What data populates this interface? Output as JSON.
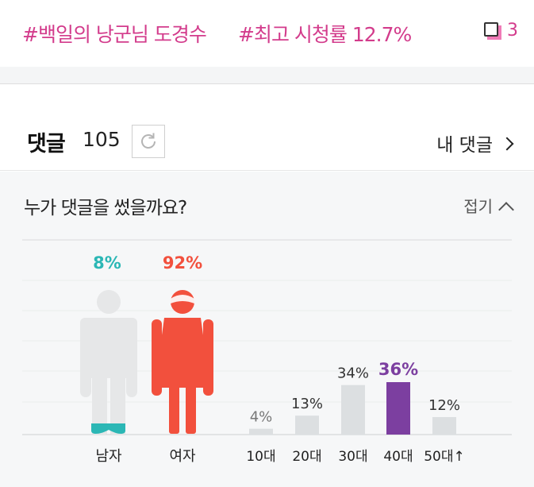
{
  "hashtags": [
    "#백일의 낭군님 도경수",
    "#최고 시청률 12.7%"
  ],
  "comment_icon": "chat-bubble-icon",
  "comment_count": "3",
  "comments_header": {
    "title": "댓글",
    "total": "105",
    "refresh_icon": "refresh-icon",
    "my_comments_label": "내 댓글"
  },
  "stats": {
    "title": "누가 댓글을 썼을까요?",
    "fold_label": "접기"
  },
  "colors": {
    "accent_pink": "#d33c8c",
    "male_teal": "#2bb7b5",
    "female_red": "#f2503d",
    "highlight_purple": "#7c3fa0",
    "bar_gray": "#dcdfe1"
  },
  "chart_data": [
    {
      "type": "bar",
      "title": "",
      "categories": [
        "남자",
        "여자"
      ],
      "values": [
        8,
        92
      ],
      "value_labels": [
        "8%",
        "92%"
      ],
      "unit": "%"
    },
    {
      "type": "bar",
      "title": "",
      "categories": [
        "10대",
        "20대",
        "30대",
        "40대",
        "50대↑"
      ],
      "values": [
        4,
        13,
        34,
        36,
        12
      ],
      "value_labels": [
        "4%",
        "13%",
        "34%",
        "36%",
        "12%"
      ],
      "highlight": "40대",
      "unit": "%"
    }
  ]
}
